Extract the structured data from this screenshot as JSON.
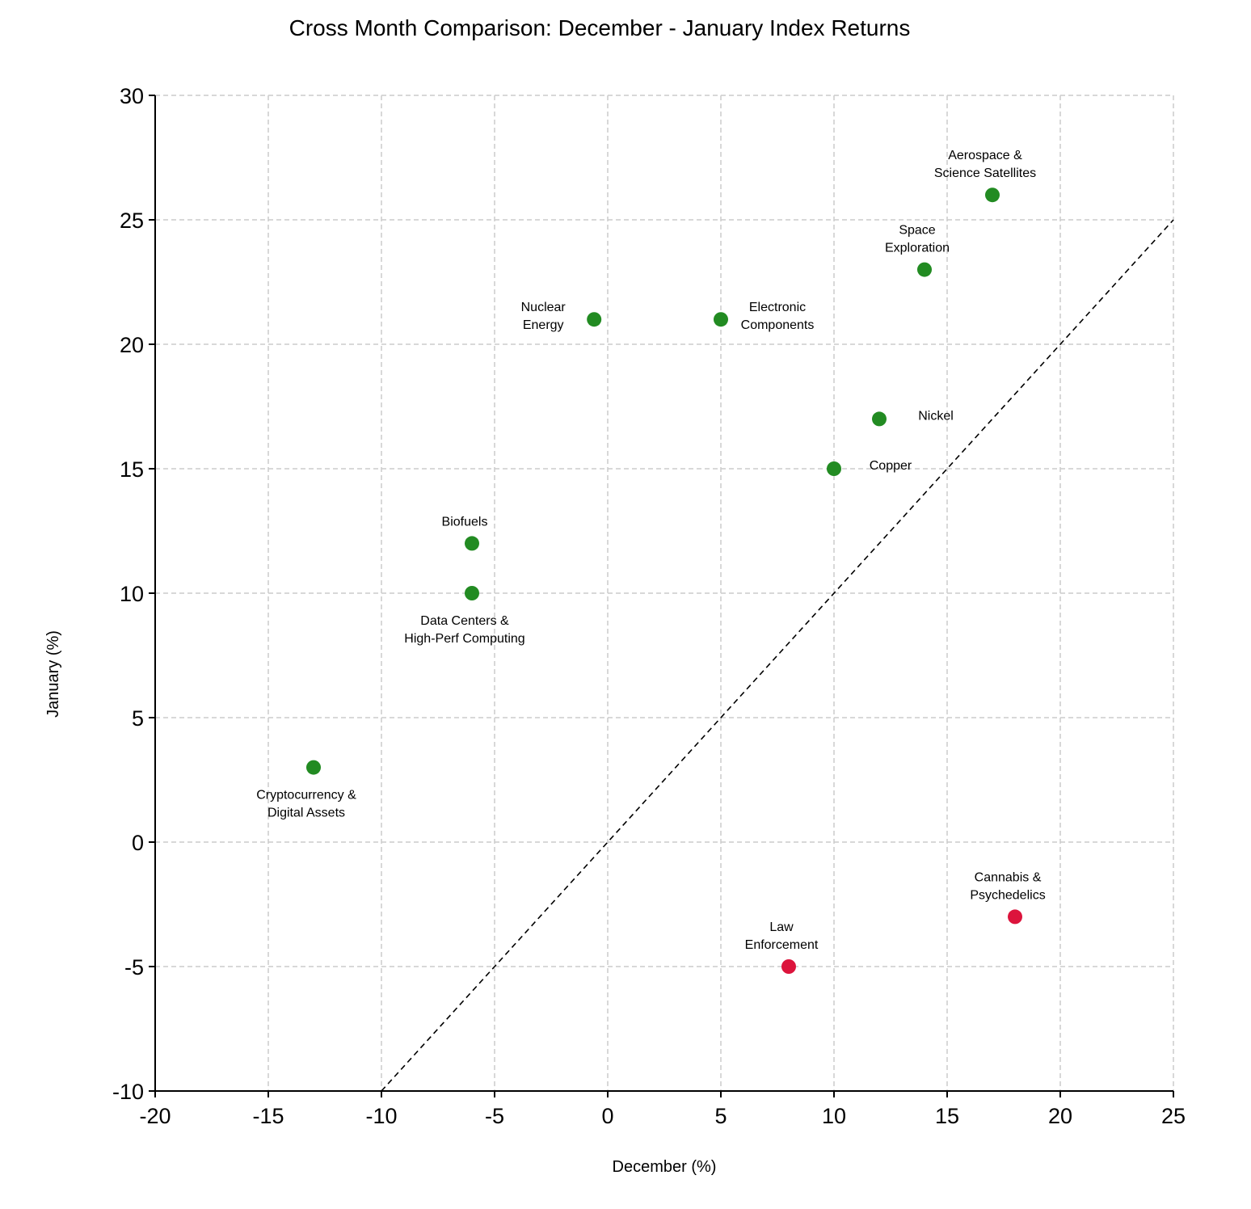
{
  "chart_data": {
    "type": "scatter",
    "title": "Cross Month Comparison: December - January Index Returns",
    "xlabel": "December (%)",
    "ylabel": "January (%)",
    "xlim": [
      -20,
      25
    ],
    "ylim": [
      -10,
      30
    ],
    "x_ticks": [
      -20,
      -15,
      -10,
      -5,
      0,
      5,
      10,
      15,
      20,
      25
    ],
    "y_ticks": [
      -10,
      -5,
      0,
      5,
      10,
      15,
      20,
      25,
      30
    ],
    "grid": true,
    "reference_line": "y = x",
    "colors": {
      "positive": "#228b22",
      "negative": "#dc143c"
    },
    "points": [
      {
        "name": "Aerospace & Science Satellites",
        "label_lines": [
          "Aerospace &",
          "Science Satellites"
        ],
        "x": 17,
        "y": 26,
        "label_pos": "above"
      },
      {
        "name": "Space Exploration",
        "label_lines": [
          "Space",
          "Exploration"
        ],
        "x": 14,
        "y": 23,
        "label_pos": "above"
      },
      {
        "name": "Nuclear Energy",
        "label_lines": [
          "Nuclear",
          "Energy"
        ],
        "x": -0.6,
        "y": 21,
        "label_pos": "left"
      },
      {
        "name": "Electronic Components",
        "label_lines": [
          "Electronic",
          "Components"
        ],
        "x": 5,
        "y": 21,
        "label_pos": "right"
      },
      {
        "name": "Nickel",
        "label_lines": [
          "Nickel"
        ],
        "x": 12,
        "y": 17,
        "label_pos": "right"
      },
      {
        "name": "Copper",
        "label_lines": [
          "Copper"
        ],
        "x": 10,
        "y": 15,
        "label_pos": "right"
      },
      {
        "name": "Biofuels",
        "label_lines": [
          "Biofuels"
        ],
        "x": -6,
        "y": 12,
        "label_pos": "above"
      },
      {
        "name": "Data Centers & High-Perf Computing",
        "label_lines": [
          "Data Centers &",
          "High-Perf Computing"
        ],
        "x": -6,
        "y": 10,
        "label_pos": "below"
      },
      {
        "name": "Cryptocurrency & Digital Assets",
        "label_lines": [
          "Cryptocurrency &",
          "Digital Assets"
        ],
        "x": -13,
        "y": 3,
        "label_pos": "below"
      },
      {
        "name": "Law Enforcement",
        "label_lines": [
          "Law",
          "Enforcement"
        ],
        "x": 8,
        "y": -5,
        "label_pos": "above"
      },
      {
        "name": "Cannabis & Psychedelics",
        "label_lines": [
          "Cannabis &",
          "Psychedelics"
        ],
        "x": 18,
        "y": -3,
        "label_pos": "above"
      }
    ]
  }
}
